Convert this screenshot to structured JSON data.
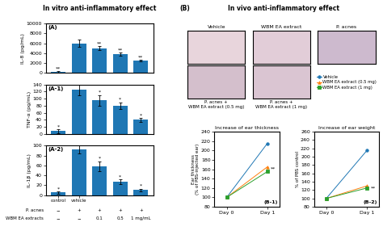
{
  "group_titles": [
    "In vitro anti-inflammatory effect",
    "In vivo anti-inflammatory effect"
  ],
  "chart_data": [
    {
      "type": "bar",
      "panel_label": "(A)",
      "ylabel": "IL-8 (pg/mL)",
      "categories": [
        null,
        null,
        null,
        null,
        null
      ],
      "values": [
        200,
        6000,
        5000,
        3800,
        2500
      ],
      "errors": [
        100,
        700,
        400,
        300,
        200
      ],
      "ylim": [
        0,
        10000
      ],
      "yticks": [
        0,
        2000,
        4000,
        6000,
        8000,
        10000
      ],
      "tick_labels": "y",
      "annotations": [
        {
          "index": 0,
          "y": 450,
          "text": "**"
        },
        {
          "index": 2,
          "y": 5500,
          "text": "**"
        },
        {
          "index": 3,
          "y": 4200,
          "text": "**"
        },
        {
          "index": 4,
          "y": 2800,
          "text": "**"
        }
      ]
    },
    {
      "type": "bar",
      "panel_label": "(A-1)",
      "ylabel": "TNF-α (pg/mL)",
      "categories": [
        null,
        null,
        null,
        null,
        null
      ],
      "values": [
        8,
        125,
        95,
        80,
        40
      ],
      "errors": [
        5,
        15,
        15,
        10,
        5
      ],
      "ylim": [
        0,
        140
      ],
      "yticks": [
        0,
        20,
        40,
        60,
        80,
        100,
        120,
        140
      ],
      "tick_labels": "y",
      "annotations": [
        {
          "index": 0,
          "y": 15,
          "text": "*"
        },
        {
          "index": 2,
          "y": 112,
          "text": "*"
        },
        {
          "index": 3,
          "y": 92,
          "text": "*"
        },
        {
          "index": 4,
          "y": 47,
          "text": "*"
        }
      ]
    },
    {
      "type": "bar",
      "panel_label": "(A-2)",
      "ylabel": "IL-1β (pg/mL)",
      "categories": [
        "control",
        "vehicle",
        null,
        null,
        null
      ],
      "values": [
        5,
        92,
        58,
        27,
        10
      ],
      "errors": [
        2,
        8,
        10,
        5,
        3
      ],
      "ylim": [
        0,
        100
      ],
      "yticks": [
        0,
        20,
        40,
        60,
        80,
        100
      ],
      "annotations": [
        {
          "index": 0,
          "y": 8,
          "text": "*"
        },
        {
          "index": 2,
          "y": 70,
          "text": "*"
        },
        {
          "index": 3,
          "y": 33,
          "text": "*"
        },
        {
          "index": 4,
          "y": 14,
          "text": "*"
        }
      ],
      "rows": [
        {
          "name": "P. acnes",
          "labels": [
            "−",
            "+",
            "+",
            "+",
            "+"
          ]
        },
        {
          "name": "WBM EA extracts",
          "labels": [
            "−",
            "−",
            "0.1",
            "0.5",
            "1 mg/mL"
          ]
        }
      ]
    },
    {
      "type": "image",
      "panel_label": "(B)",
      "title": "Vehicle",
      "color": "#e8d5dc",
      "tick_labels": false
    },
    {
      "type": "image",
      "title": "WBM EA extract",
      "color": "#e2cdd8",
      "tick_labels": false
    },
    {
      "type": "image",
      "title": "P. acnes",
      "color": "#cdbace",
      "tick_labels": false
    },
    {
      "type": "image",
      "title": "P. acnes +\nWBM EA extract (0.5 mg)",
      "color": "#d4bfcc",
      "tick_labels": false
    },
    {
      "type": "image",
      "title": "P. acnes +\nWBM EA extract (1 mg)",
      "color": "#dac5d2",
      "tick_labels": false
    },
    {
      "type": "line",
      "panel_label": "(B-1)",
      "title": "Increase of ear thickness",
      "ylabel": "Ear thickness\n(% of PBS-injected ear)",
      "categories": [
        "Day 0",
        "Day 1"
      ],
      "series": [
        {
          "name": "Vehicle",
          "marker": "circle",
          "values": [
            100,
            215
          ]
        },
        {
          "name": "WBM EA extract (0.5 mg)",
          "marker": "triangle",
          "values": [
            100,
            165
          ]
        },
        {
          "name": "WBM EA extract (1 mg)",
          "marker": "square",
          "values": [
            100,
            155
          ]
        }
      ],
      "ylim": [
        80,
        240
      ],
      "yticks": [
        80,
        100,
        120,
        140,
        160,
        180,
        200,
        220,
        240
      ],
      "legend": "center",
      "annotations": [
        {
          "index": 1,
          "y": 160,
          "text": "**"
        }
      ]
    },
    {
      "type": "line",
      "panel_label": "(B-2)",
      "title": "Increase of ear weight",
      "ylabel": "% of PBS control",
      "categories": [
        "Day 0",
        "Day 1"
      ],
      "series": [
        {
          "name": "Vehicle",
          "marker": "circle",
          "values": [
            100,
            215
          ]
        },
        {
          "name": "WBM EA extract (0.5 mg)",
          "marker": "triangle",
          "values": [
            100,
            130
          ]
        },
        {
          "name": "WBM EA extract (1 mg)",
          "marker": "square",
          "values": [
            100,
            125
          ]
        }
      ],
      "ylim": [
        80,
        260
      ],
      "yticks": [
        80,
        100,
        120,
        140,
        160,
        180,
        200,
        220,
        240,
        260
      ],
      "annotations": [
        {
          "index": 1,
          "y": 125,
          "text": "**"
        }
      ]
    }
  ]
}
